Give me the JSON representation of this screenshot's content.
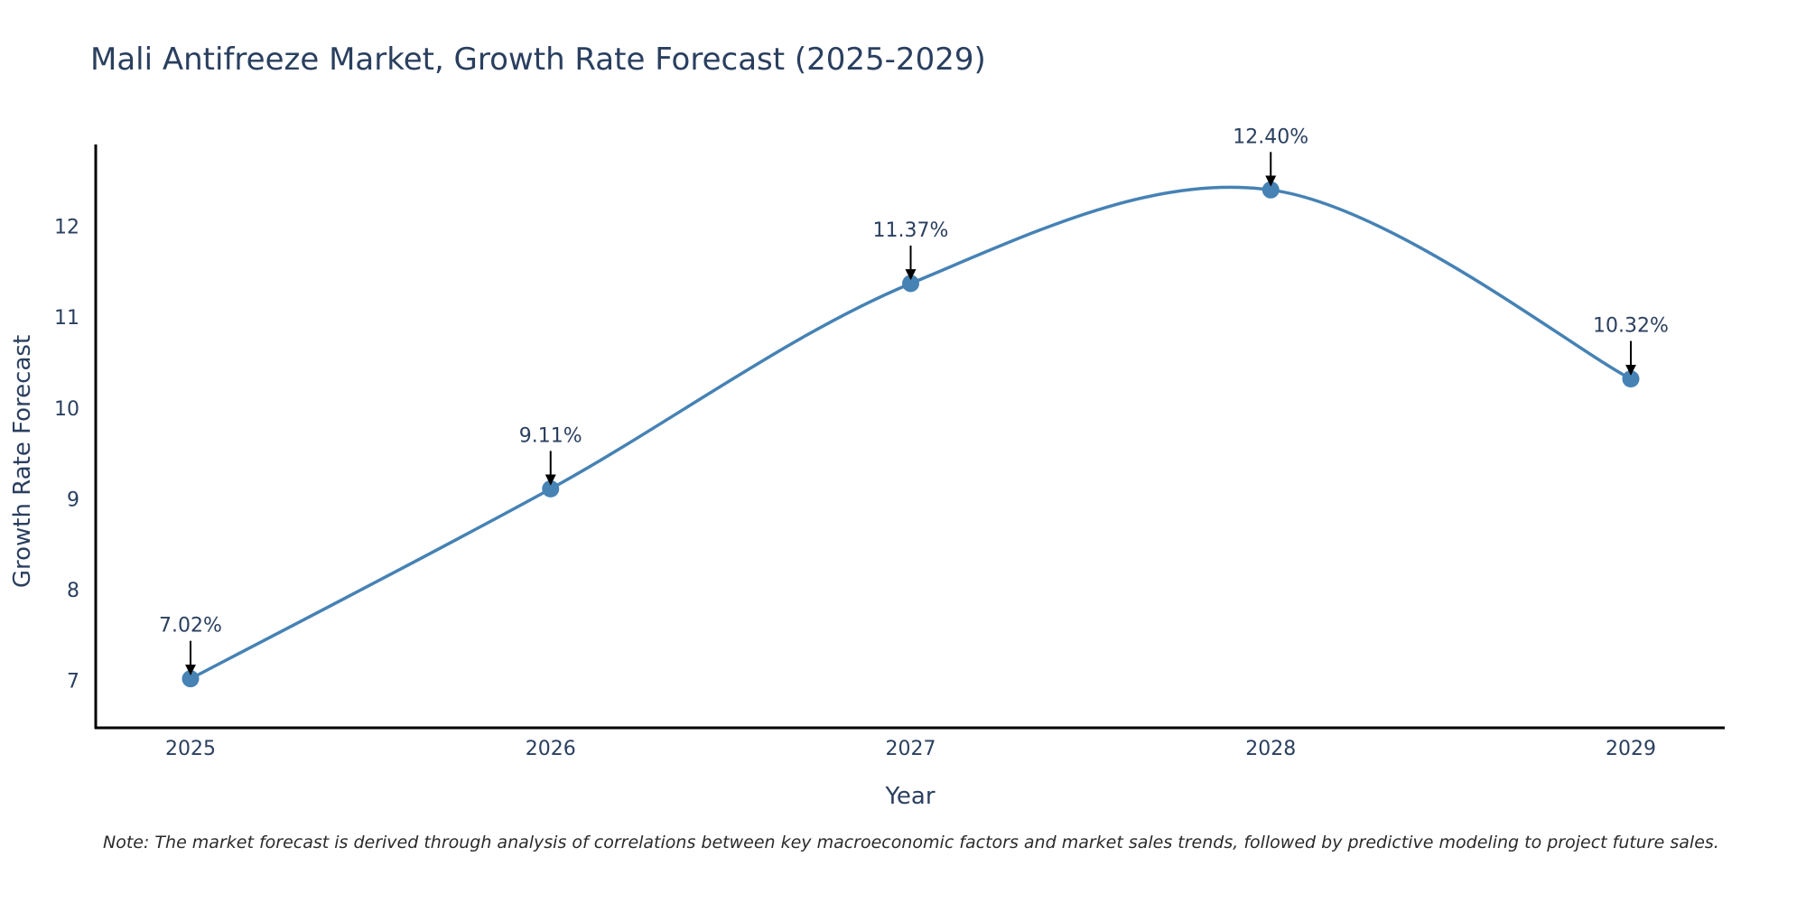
{
  "chart_data": {
    "type": "line",
    "title": "Mali Antifreeze Market, Growth Rate Forecast (2025-2029)",
    "xlabel": "Year",
    "ylabel": "Growth Rate Forecast",
    "categories": [
      "2025",
      "2026",
      "2027",
      "2028",
      "2029"
    ],
    "values": [
      7.02,
      9.11,
      11.37,
      12.4,
      10.32
    ],
    "data_labels": [
      "7.02%",
      "9.11%",
      "11.37%",
      "12.40%",
      "10.32%"
    ],
    "y_ticks": [
      7,
      8,
      9,
      10,
      11,
      12
    ],
    "ylim": [
      6.48,
      12.9
    ],
    "line_shape": "spline",
    "grid": false,
    "colors": {
      "line": "#4682b4",
      "marker": "#4682b4",
      "arrow": "#000000",
      "axis": "#000000"
    }
  },
  "note": "Note: The market forecast is derived through analysis of correlations between key macroeconomic factors and market sales trends, followed by predictive modeling to project future sales."
}
